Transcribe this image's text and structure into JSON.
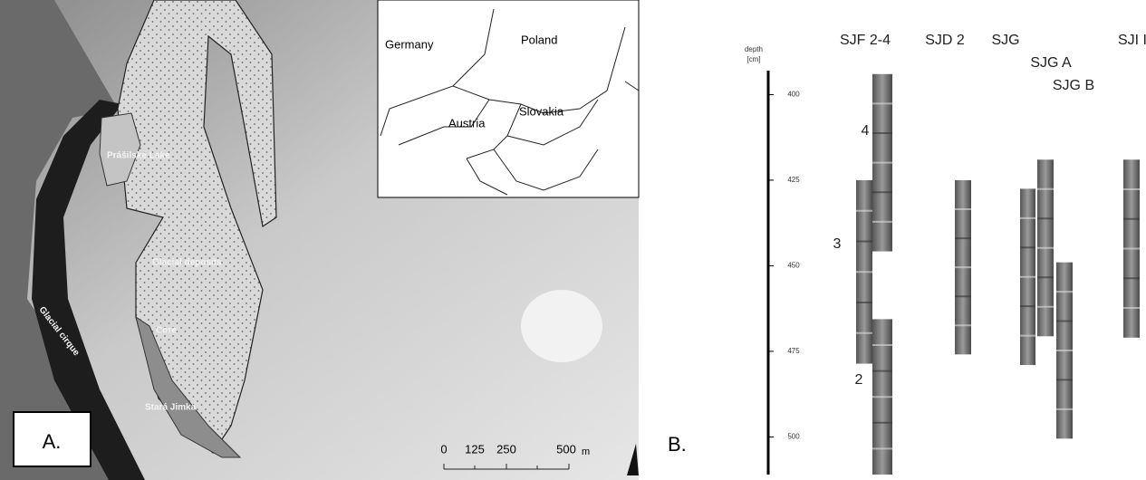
{
  "panel_a": {
    "label": "A.",
    "inset": {
      "countries": [
        "Germany",
        "Poland",
        "Austria",
        "Slovakia"
      ]
    },
    "map_labels": {
      "lake": "Prášilské Lake",
      "deposits": "Glacial deposits",
      "core": "Core",
      "cirque": "Glacial cirque",
      "site": "Stará Jimka"
    },
    "scale": {
      "ticks": [
        "0",
        "125",
        "250",
        "500"
      ],
      "unit": "m"
    }
  },
  "panel_b": {
    "label": "B.",
    "axis_title": [
      "depth",
      "[cm]"
    ],
    "ylim": [
      393,
      511
    ],
    "yticks": [
      400,
      425,
      450,
      475,
      500
    ],
    "groups": [
      "SJF 2-4",
      "SJD 2",
      "SJG",
      "SJG A",
      "SJG B",
      "SJI I"
    ],
    "core_numbers": [
      "4",
      "3",
      "2"
    ],
    "cores": [
      {
        "top": 425,
        "bottom": 478.6
      },
      {
        "top": 394,
        "bottom": 445.8
      },
      {
        "top": 465.6,
        "bottom": 511
      },
      {
        "top": 425,
        "bottom": 475.9
      },
      {
        "top": 427.5,
        "bottom": 479
      },
      {
        "top": 419,
        "bottom": 470.6
      },
      {
        "top": 449,
        "bottom": 500.5
      },
      {
        "top": 419,
        "bottom": 471
      }
    ]
  }
}
